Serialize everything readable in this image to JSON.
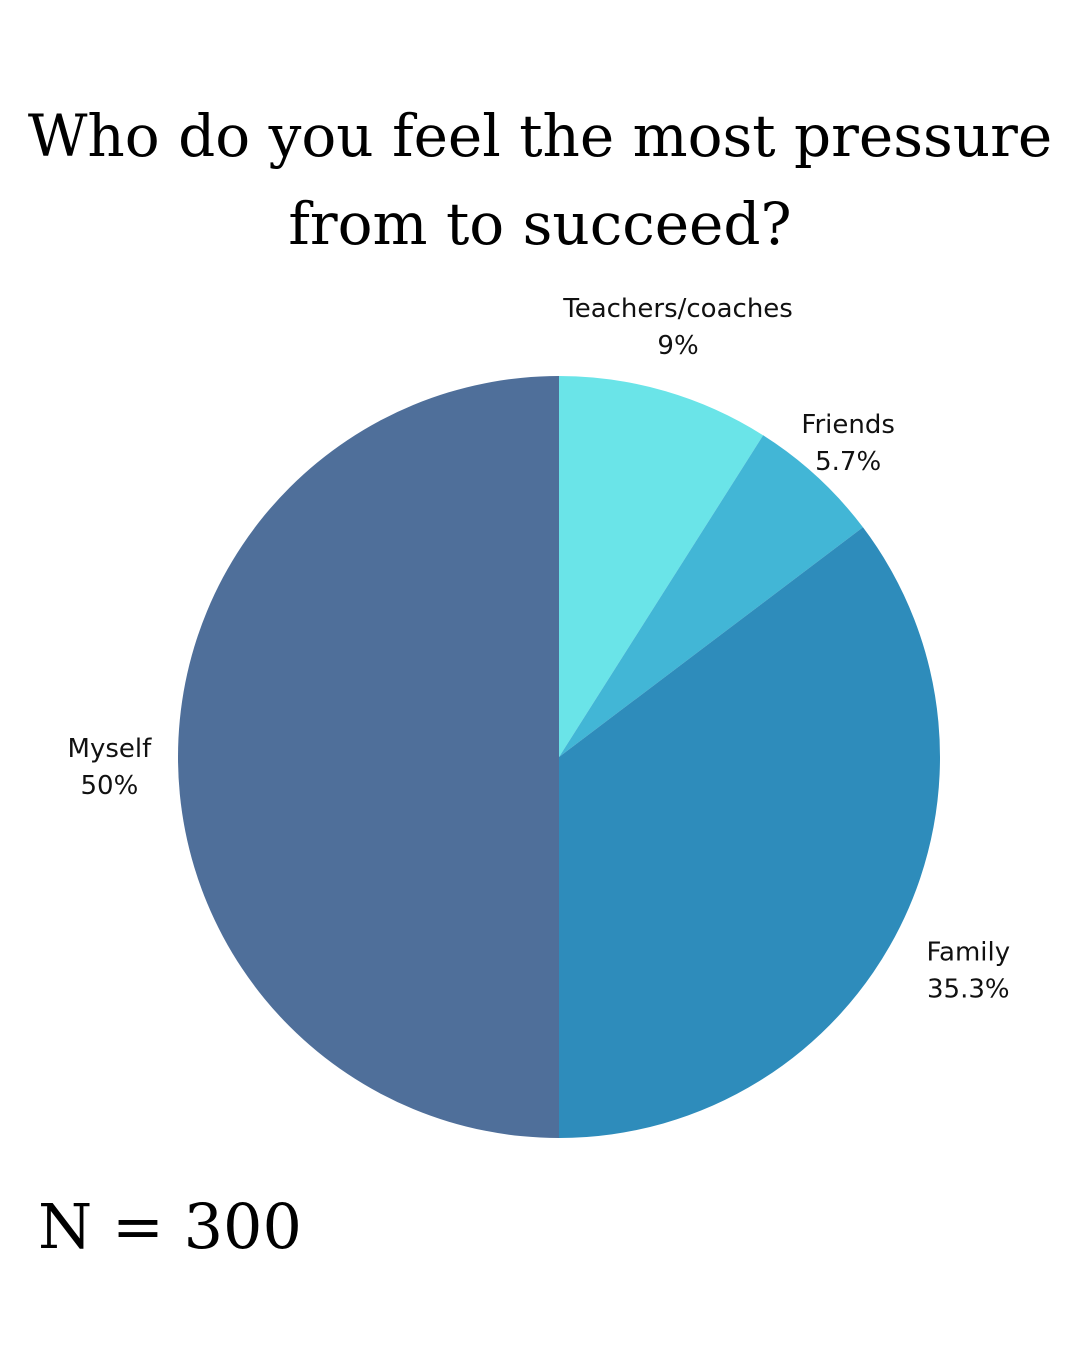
{
  "chart_data": {
    "type": "pie",
    "title": "Who do you feel the most pressure from to succeed?",
    "slices": [
      {
        "label": "Teachers/coaches",
        "value": 9,
        "value_label": "9%",
        "color": "#6ae4e8"
      },
      {
        "label": "Friends",
        "value": 5.7,
        "value_label": "5.7%",
        "color": "#42b6d6"
      },
      {
        "label": "Family",
        "value": 35.3,
        "value_label": "35.3%",
        "color": "#2e8cbb"
      },
      {
        "label": "Myself",
        "value": 50,
        "value_label": "50%",
        "color": "#4f6f9a"
      }
    ],
    "start": "12 o'clock, clockwise",
    "note": "N = 300"
  }
}
